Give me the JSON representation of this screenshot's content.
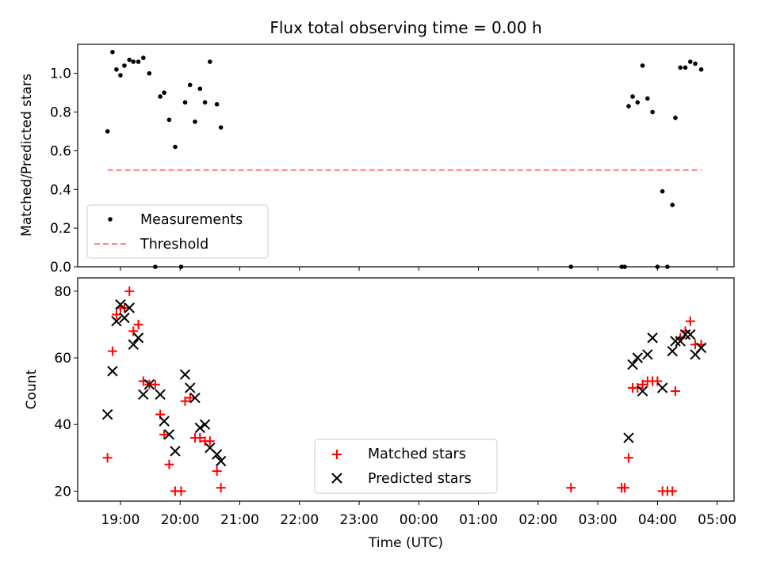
{
  "chart_data": [
    {
      "type": "scatter",
      "title": "Flux total observing time = 0.00 h",
      "xlabel": "",
      "ylabel": "Matched/Predicted stars",
      "ylim": [
        0,
        1.15
      ],
      "yticks": [
        "0.0",
        "0.2",
        "0.4",
        "0.6",
        "0.8",
        "1.0"
      ],
      "grid": false,
      "legend_position": "lower-left",
      "series": [
        {
          "name": "Measurements",
          "color": "#000000",
          "marker": "dot",
          "points": [
            [
              "18:47",
              0.7
            ],
            [
              "18:52",
              1.11
            ],
            [
              "18:56",
              1.02
            ],
            [
              "19:00",
              0.99
            ],
            [
              "19:04",
              1.04
            ],
            [
              "19:09",
              1.07
            ],
            [
              "19:13",
              1.06
            ],
            [
              "19:18",
              1.06
            ],
            [
              "19:23",
              1.08
            ],
            [
              "19:29",
              1.0
            ],
            [
              "19:35",
              0.0
            ],
            [
              "19:40",
              0.88
            ],
            [
              "19:44",
              0.9
            ],
            [
              "19:49",
              0.76
            ],
            [
              "19:55",
              0.62
            ],
            [
              "20:01",
              0.0
            ],
            [
              "20:05",
              0.85
            ],
            [
              "20:10",
              0.94
            ],
            [
              "20:15",
              0.75
            ],
            [
              "20:20",
              0.92
            ],
            [
              "20:25",
              0.85
            ],
            [
              "20:30",
              1.06
            ],
            [
              "20:37",
              0.84
            ],
            [
              "20:41",
              0.72
            ],
            [
              "02:33",
              0.0
            ],
            [
              "03:24",
              0.0
            ],
            [
              "03:27",
              0.0
            ],
            [
              "03:31",
              0.83
            ],
            [
              "03:35",
              0.88
            ],
            [
              "03:40",
              0.85
            ],
            [
              "03:45",
              1.04
            ],
            [
              "03:50",
              0.87
            ],
            [
              "03:55",
              0.8
            ],
            [
              "04:00",
              0.0
            ],
            [
              "04:05",
              0.39
            ],
            [
              "04:10",
              0.0
            ],
            [
              "04:15",
              0.32
            ],
            [
              "04:18",
              0.77
            ],
            [
              "04:23",
              1.03
            ],
            [
              "04:28",
              1.03
            ],
            [
              "04:33",
              1.06
            ],
            [
              "04:38",
              1.05
            ],
            [
              "04:44",
              1.02
            ]
          ]
        },
        {
          "name": "Threshold",
          "color": "#ff8080",
          "style": "dashed",
          "x": [
            "18:47",
            "04:44"
          ],
          "y": [
            0.5,
            0.5
          ]
        }
      ]
    },
    {
      "type": "scatter",
      "title": "",
      "xlabel": "Time (UTC)",
      "ylabel": "Count",
      "ylim": [
        17,
        84
      ],
      "yticks": [
        "20",
        "40",
        "60",
        "80"
      ],
      "xticks": [
        "19:00",
        "20:00",
        "21:00",
        "22:00",
        "23:00",
        "00:00",
        "01:00",
        "02:00",
        "03:00",
        "04:00",
        "05:00"
      ],
      "grid": false,
      "legend_position": "lower-center",
      "series": [
        {
          "name": "Matched stars",
          "color": "#ff0000",
          "marker": "plus",
          "points": [
            [
              "18:47",
              30
            ],
            [
              "18:52",
              62
            ],
            [
              "18:56",
              73
            ],
            [
              "19:00",
              75
            ],
            [
              "19:04",
              75
            ],
            [
              "19:09",
              80
            ],
            [
              "19:13",
              68
            ],
            [
              "19:18",
              70
            ],
            [
              "19:23",
              53
            ],
            [
              "19:29",
              52
            ],
            [
              "19:35",
              52
            ],
            [
              "19:40",
              43
            ],
            [
              "19:44",
              37
            ],
            [
              "19:49",
              28
            ],
            [
              "19:55",
              20
            ],
            [
              "20:01",
              20
            ],
            [
              "20:05",
              47
            ],
            [
              "20:10",
              48
            ],
            [
              "20:15",
              36
            ],
            [
              "20:20",
              36
            ],
            [
              "20:25",
              35
            ],
            [
              "20:30",
              35
            ],
            [
              "20:37",
              26
            ],
            [
              "20:41",
              21
            ],
            [
              "02:33",
              21
            ],
            [
              "03:24",
              21
            ],
            [
              "03:27",
              21
            ],
            [
              "03:31",
              30
            ],
            [
              "03:35",
              51
            ],
            [
              "03:40",
              51
            ],
            [
              "03:45",
              52
            ],
            [
              "03:50",
              53
            ],
            [
              "03:55",
              53
            ],
            [
              "04:00",
              53
            ],
            [
              "04:05",
              20
            ],
            [
              "04:10",
              20
            ],
            [
              "04:15",
              20
            ],
            [
              "04:18",
              50
            ],
            [
              "04:23",
              66
            ],
            [
              "04:28",
              68
            ],
            [
              "04:33",
              71
            ],
            [
              "04:38",
              64
            ],
            [
              "04:44",
              64
            ]
          ]
        },
        {
          "name": "Predicted stars",
          "color": "#000000",
          "marker": "x",
          "points": [
            [
              "18:47",
              43
            ],
            [
              "18:52",
              56
            ],
            [
              "18:56",
              71
            ],
            [
              "19:00",
              76
            ],
            [
              "19:04",
              72
            ],
            [
              "19:09",
              75
            ],
            [
              "19:13",
              64
            ],
            [
              "19:18",
              66
            ],
            [
              "19:23",
              49
            ],
            [
              "19:29",
              52
            ],
            [
              "19:40",
              49
            ],
            [
              "19:44",
              41
            ],
            [
              "19:49",
              37
            ],
            [
              "19:55",
              32
            ],
            [
              "20:05",
              55
            ],
            [
              "20:10",
              51
            ],
            [
              "20:15",
              48
            ],
            [
              "20:20",
              39
            ],
            [
              "20:25",
              40
            ],
            [
              "20:30",
              33
            ],
            [
              "20:37",
              31
            ],
            [
              "20:41",
              29
            ],
            [
              "03:31",
              36
            ],
            [
              "03:35",
              58
            ],
            [
              "03:40",
              60
            ],
            [
              "03:45",
              50
            ],
            [
              "03:50",
              61
            ],
            [
              "03:55",
              66
            ],
            [
              "04:05",
              51
            ],
            [
              "04:15",
              62
            ],
            [
              "04:18",
              65
            ],
            [
              "04:23",
              65
            ],
            [
              "04:28",
              67
            ],
            [
              "04:33",
              67
            ],
            [
              "04:38",
              61
            ],
            [
              "04:44",
              63
            ]
          ]
        }
      ]
    }
  ]
}
